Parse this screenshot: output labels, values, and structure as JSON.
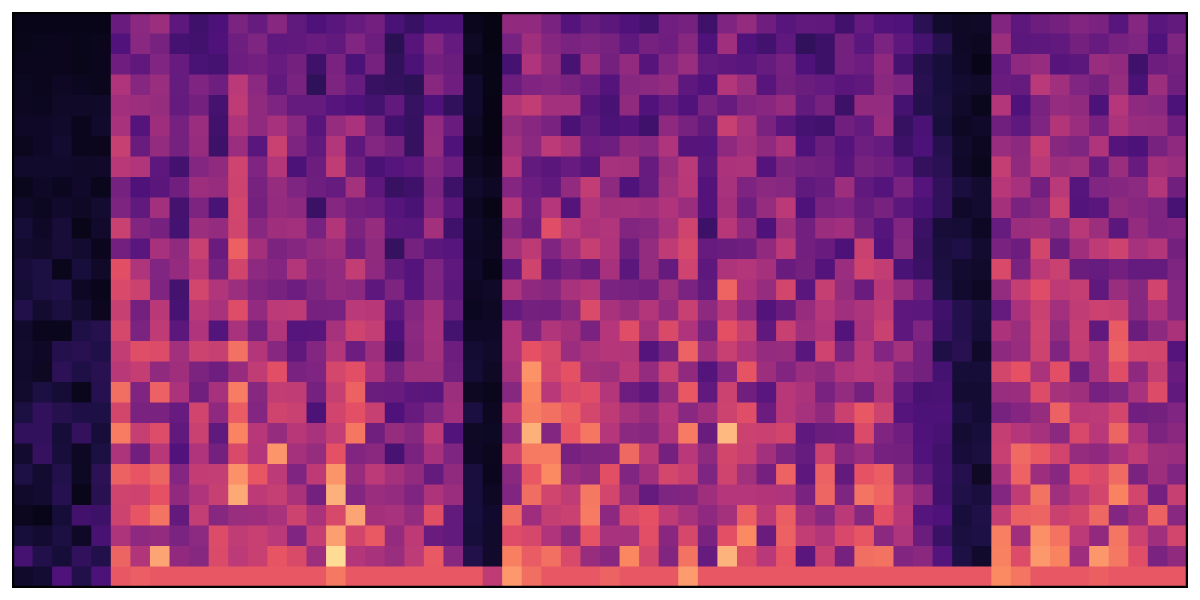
{
  "chart_data": {
    "type": "heatmap",
    "title": "",
    "xlabel": "",
    "ylabel": "",
    "colormap": "magma",
    "axes_visible": false,
    "grid": false,
    "frame_color": "#000000",
    "frequency_bands": 28,
    "time_energy": [
      0.05,
      0.05,
      0.05,
      0.05,
      0.05,
      0.9,
      0.8,
      0.85,
      0.6,
      0.8,
      0.7,
      0.95,
      0.75,
      0.95,
      0.7,
      0.6,
      0.9,
      0.85,
      0.7,
      0.55,
      0.6,
      0.7,
      0.6,
      0.15,
      0.1,
      0.85,
      0.95,
      0.9,
      0.8,
      0.85,
      0.75,
      0.8,
      0.7,
      0.8,
      0.85,
      0.6,
      0.95,
      0.8,
      0.7,
      0.8,
      0.6,
      0.75,
      0.7,
      0.8,
      0.75,
      0.65,
      0.5,
      0.3,
      0.2,
      0.15,
      0.85,
      0.8,
      0.9,
      0.85,
      0.75,
      0.8,
      0.85,
      0.75,
      0.8,
      0.7
    ],
    "harmonic_floor": 0.7
  }
}
